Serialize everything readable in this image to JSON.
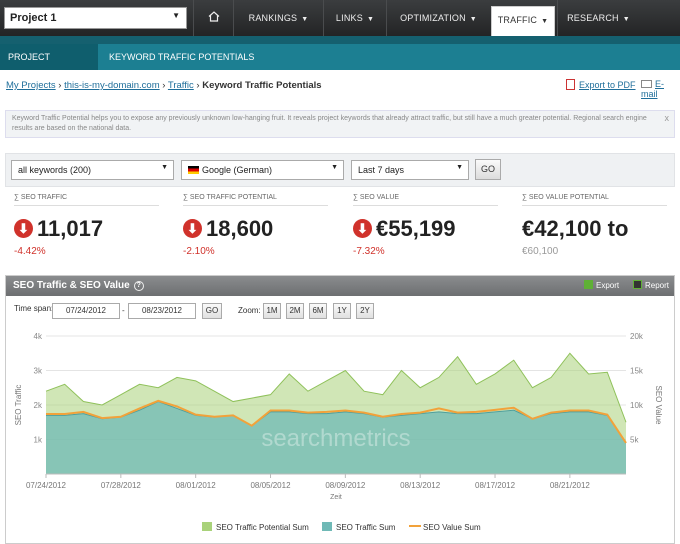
{
  "topnav": {
    "project": "Project 1",
    "home_icon": "home-icon",
    "items": [
      {
        "label": "RANKINGS"
      },
      {
        "label": "LINKS"
      },
      {
        "label": "OPTIMIZATION"
      },
      {
        "label": "TRAFFIC"
      },
      {
        "label": "RESEARCH"
      }
    ]
  },
  "subnav": {
    "items": [
      {
        "label": "PROJECT TRAFFIC"
      },
      {
        "label": "KEYWORD TRAFFIC POTENTIALS"
      }
    ]
  },
  "breadcrumb": {
    "my_projects": "My Projects",
    "sep1": " › ",
    "domain": "this-is-my-domain.com",
    "sep2": " › ",
    "traffic": "Traffic",
    "sep3": " › ",
    "current": "Keyword Traffic Potentials"
  },
  "actions": {
    "export_pdf": "Export to PDF",
    "email": "E-mail"
  },
  "info": {
    "text": "Keyword Traffic Potential helps you to expose any previously unknown low-hanging fruit. It reveals project keywords that already attract traffic, but still have a much greater potential. Regional search engine results are based on the national data.",
    "close": "x"
  },
  "filters": {
    "keywords": "all keywords (200)",
    "engine": "Google (German)",
    "period": "Last 7 days",
    "go": "GO"
  },
  "metrics": [
    {
      "label": "∑ SEO TRAFFIC",
      "value": "11,017",
      "change": "-4.42%"
    },
    {
      "label": "∑ SEO TRAFFIC POTENTIAL",
      "value": "18,600",
      "change": "-2.10%"
    },
    {
      "label": "∑ SEO VALUE",
      "value": "€55,199",
      "change": "-7.32%"
    },
    {
      "label": "∑ SEO VALUE POTENTIAL",
      "value": "€42,100 to",
      "change": "€60,100"
    }
  ],
  "chart_panel": {
    "title": "SEO Traffic & SEO Value",
    "help": "?",
    "export": "Export",
    "report": "Report",
    "time_span_label": "Time span:",
    "date_from": "07/24/2012",
    "date_sep": "-",
    "date_to": "08/23/2012",
    "go": "GO",
    "zoom_label": "Zoom:",
    "zoom": [
      "1M",
      "2M",
      "6M",
      "1Y",
      "2Y"
    ],
    "watermark": "searchmetrics"
  },
  "colors": {
    "potential": "#a9d27a",
    "traffic": "#6fb9b6",
    "value": "#f2a23a",
    "nav": "#2e3032",
    "subnav": "#1c7f92",
    "negative": "#d0322b"
  },
  "chart_data": {
    "type": "area",
    "xlabel": "Zeit",
    "ylabel_left": "SEO Traffic",
    "ylabel_right": "SEO Value",
    "y_ticks_left": [
      "1k",
      "2k",
      "3k",
      "4k"
    ],
    "y_ticks_right": [
      "5k",
      "10k",
      "15k",
      "20k"
    ],
    "ylim_left": [
      0,
      4000
    ],
    "ylim_right": [
      0,
      20000
    ],
    "x_tick_labels": [
      "07/24/2012",
      "07/28/2012",
      "08/01/2012",
      "08/05/2012",
      "08/09/2012",
      "08/13/2012",
      "08/17/2012",
      "08/21/2012"
    ],
    "x_tick_index": [
      0,
      4,
      8,
      12,
      16,
      20,
      24,
      28
    ],
    "legend": [
      "SEO Traffic Potential Sum",
      "SEO Traffic Sum",
      "SEO Value Sum"
    ],
    "series": [
      {
        "name": "SEO Traffic Potential Sum",
        "axis": "left",
        "values": [
          2400,
          2600,
          2100,
          2000,
          2300,
          2600,
          2500,
          2800,
          2700,
          2400,
          2100,
          2200,
          2300,
          2900,
          2400,
          2700,
          3000,
          2400,
          2300,
          3000,
          2500,
          2800,
          3400,
          2600,
          2900,
          3300,
          2500,
          2800,
          3500,
          2900,
          2950,
          1500
        ]
      },
      {
        "name": "SEO Traffic Sum",
        "axis": "left",
        "values": [
          1700,
          1700,
          1750,
          1600,
          1650,
          1850,
          2100,
          1900,
          1700,
          1650,
          1700,
          1400,
          1800,
          1800,
          1750,
          1750,
          1800,
          1750,
          1650,
          1700,
          1750,
          1800,
          1750,
          1750,
          1800,
          1850,
          1600,
          1750,
          1800,
          1800,
          1700,
          900
        ]
      },
      {
        "name": "SEO Value Sum",
        "axis": "right",
        "values": [
          8700,
          8700,
          9000,
          8100,
          8300,
          9500,
          10600,
          9800,
          8600,
          8300,
          8500,
          7000,
          9200,
          9200,
          8900,
          9000,
          9200,
          8900,
          8300,
          8700,
          8900,
          9500,
          8900,
          9000,
          9300,
          9600,
          8000,
          8900,
          9200,
          9200,
          8600,
          4500
        ]
      }
    ],
    "grid": true,
    "legend_position": "bottom"
  }
}
